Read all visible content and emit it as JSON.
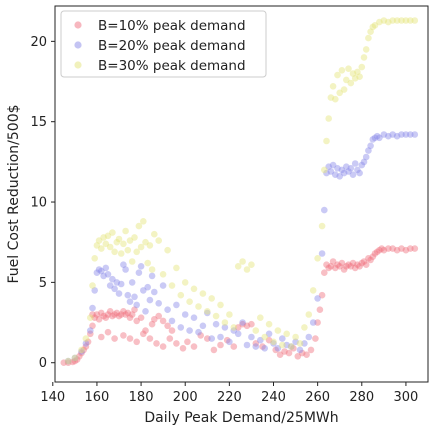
{
  "chart_data": {
    "type": "scatter",
    "xlabel": "Daily Peak Demand/25MWh",
    "ylabel": "Fuel Cost Reduction/500$",
    "xlim": [
      141,
      310
    ],
    "ylim": [
      -1.2,
      22.2
    ],
    "xticks": [
      140,
      160,
      180,
      200,
      220,
      240,
      260,
      280,
      300
    ],
    "yticks": [
      0,
      5,
      10,
      15,
      20
    ],
    "grid": false,
    "legend_position": "top-left",
    "series": [
      {
        "name": "B=10% peak demand",
        "color": "#f0707f",
        "points": [
          [
            145,
            0
          ],
          [
            147,
            0
          ],
          [
            149,
            0.05
          ],
          [
            150,
            0.1
          ],
          [
            151,
            0.2
          ],
          [
            152,
            0.4
          ],
          [
            153,
            0.6
          ],
          [
            154,
            0.8
          ],
          [
            155,
            1.0
          ],
          [
            156,
            1.3
          ],
          [
            157,
            1.8
          ],
          [
            158,
            2.3
          ],
          [
            158,
            3.0
          ],
          [
            159,
            2.8
          ],
          [
            160,
            3.0
          ],
          [
            161,
            2.7
          ],
          [
            162,
            3.1
          ],
          [
            163,
            2.9
          ],
          [
            164,
            2.8
          ],
          [
            165,
            3.0
          ],
          [
            166,
            3.2
          ],
          [
            167,
            2.9
          ],
          [
            168,
            3.0
          ],
          [
            169,
            3.1
          ],
          [
            170,
            2.9
          ],
          [
            171,
            3.0
          ],
          [
            172,
            3.2
          ],
          [
            173,
            3.0
          ],
          [
            174,
            3.1
          ],
          [
            175,
            2.8
          ],
          [
            176,
            3.0
          ],
          [
            177,
            3.3
          ],
          [
            178,
            2.6
          ],
          [
            180,
            2.8
          ],
          [
            182,
            2.0
          ],
          [
            185,
            2.4
          ],
          [
            186,
            2.7
          ],
          [
            188,
            2.9
          ],
          [
            190,
            2.6
          ],
          [
            192,
            2.3
          ],
          [
            194,
            2.0
          ],
          [
            162,
            1.6
          ],
          [
            165,
            1.9
          ],
          [
            168,
            1.5
          ],
          [
            172,
            1.7
          ],
          [
            175,
            1.5
          ],
          [
            178,
            1.3
          ],
          [
            181,
            1.8
          ],
          [
            184,
            1.5
          ],
          [
            187,
            1.2
          ],
          [
            190,
            1.0
          ],
          [
            193,
            1.5
          ],
          [
            196,
            1.2
          ],
          [
            199,
            0.9
          ],
          [
            201,
            1.3
          ],
          [
            204,
            1.0
          ],
          [
            207,
            1.7
          ],
          [
            210,
            1.5
          ],
          [
            213,
            0.8
          ],
          [
            216,
            1.1
          ],
          [
            219,
            1.4
          ],
          [
            222,
            1.0
          ],
          [
            224,
            2.2
          ],
          [
            226,
            2.4
          ],
          [
            228,
            2.3
          ],
          [
            230,
            2.4
          ],
          [
            232,
            1.2
          ],
          [
            235,
            1.0
          ],
          [
            238,
            1.4
          ],
          [
            241,
            0.8
          ],
          [
            243,
            0.5
          ],
          [
            245,
            0.7
          ],
          [
            247,
            0.6
          ],
          [
            249,
            0.9
          ],
          [
            251,
            0.4
          ],
          [
            253,
            0.6
          ],
          [
            255,
            0.5
          ],
          [
            257,
            0.8
          ],
          [
            259,
            1.5
          ],
          [
            260,
            2.5
          ],
          [
            261,
            3.3
          ],
          [
            262,
            4.2
          ],
          [
            263,
            5.6
          ],
          [
            264,
            6.1
          ],
          [
            265,
            5.9
          ],
          [
            266,
            6.0
          ],
          [
            267,
            6.3
          ],
          [
            268,
            5.9
          ],
          [
            269,
            6.1
          ],
          [
            270,
            6.0
          ],
          [
            271,
            6.2
          ],
          [
            272,
            5.8
          ],
          [
            273,
            6.0
          ],
          [
            274,
            6.1
          ],
          [
            275,
            6.0
          ],
          [
            276,
            6.2
          ],
          [
            277,
            5.9
          ],
          [
            278,
            6.1
          ],
          [
            279,
            6.0
          ],
          [
            280,
            6.2
          ],
          [
            281,
            6.3
          ],
          [
            282,
            6.1
          ],
          [
            283,
            6.5
          ],
          [
            284,
            6.4
          ],
          [
            285,
            6.6
          ],
          [
            286,
            6.8
          ],
          [
            287,
            6.9
          ],
          [
            288,
            7.0
          ],
          [
            289,
            7.1
          ],
          [
            290,
            7.0
          ],
          [
            292,
            7.1
          ],
          [
            294,
            7.1
          ],
          [
            296,
            7.0
          ],
          [
            298,
            7.1
          ],
          [
            300,
            7.0
          ],
          [
            302,
            7.1
          ],
          [
            304,
            7.1
          ]
        ]
      },
      {
        "name": "B=20% peak demand",
        "color": "#8a8ae8",
        "points": [
          [
            147,
            0.1
          ],
          [
            150,
            0.3
          ],
          [
            153,
            0.7
          ],
          [
            155,
            1.2
          ],
          [
            157,
            2.0
          ],
          [
            158,
            3.4
          ],
          [
            159,
            4.5
          ],
          [
            160,
            5.6
          ],
          [
            161,
            5.8
          ],
          [
            162,
            5.7
          ],
          [
            163,
            5.4
          ],
          [
            164,
            5.9
          ],
          [
            165,
            5.5
          ],
          [
            166,
            4.8
          ],
          [
            167,
            5.2
          ],
          [
            168,
            4.6
          ],
          [
            169,
            5.0
          ],
          [
            170,
            4.3
          ],
          [
            171,
            4.9
          ],
          [
            172,
            6.1
          ],
          [
            173,
            5.8
          ],
          [
            174,
            4.2
          ],
          [
            175,
            3.8
          ],
          [
            176,
            5.0
          ],
          [
            177,
            4.1
          ],
          [
            178,
            3.6
          ],
          [
            179,
            5.6
          ],
          [
            180,
            6.0
          ],
          [
            181,
            4.5
          ],
          [
            182,
            3.2
          ],
          [
            183,
            4.7
          ],
          [
            184,
            3.9
          ],
          [
            185,
            5.4
          ],
          [
            186,
            4.4
          ],
          [
            188,
            3.7
          ],
          [
            190,
            4.8
          ],
          [
            192,
            3.3
          ],
          [
            194,
            2.6
          ],
          [
            196,
            3.6
          ],
          [
            198,
            2.2
          ],
          [
            200,
            3.0
          ],
          [
            202,
            2.0
          ],
          [
            204,
            2.8
          ],
          [
            206,
            1.9
          ],
          [
            208,
            2.3
          ],
          [
            210,
            3.1
          ],
          [
            212,
            1.5
          ],
          [
            214,
            2.4
          ],
          [
            216,
            1.6
          ],
          [
            218,
            2.2
          ],
          [
            220,
            1.3
          ],
          [
            222,
            2.0
          ],
          [
            224,
            1.8
          ],
          [
            226,
            2.5
          ],
          [
            228,
            1.1
          ],
          [
            230,
            1.6
          ],
          [
            232,
            1.0
          ],
          [
            234,
            1.4
          ],
          [
            236,
            0.9
          ],
          [
            238,
            1.8
          ],
          [
            240,
            1.2
          ],
          [
            242,
            0.9
          ],
          [
            244,
            1.5
          ],
          [
            246,
            1.1
          ],
          [
            248,
            1.0
          ],
          [
            250,
            1.3
          ],
          [
            252,
            0.8
          ],
          [
            254,
            1.2
          ],
          [
            256,
            1.6
          ],
          [
            258,
            2.5
          ],
          [
            260,
            4.0
          ],
          [
            262,
            6.8
          ],
          [
            263,
            9.5
          ],
          [
            264,
            11.8
          ],
          [
            265,
            12.2
          ],
          [
            266,
            11.9
          ],
          [
            267,
            12.3
          ],
          [
            268,
            11.7
          ],
          [
            269,
            12.1
          ],
          [
            270,
            11.6
          ],
          [
            271,
            12.0
          ],
          [
            272,
            11.8
          ],
          [
            273,
            12.2
          ],
          [
            274,
            11.9
          ],
          [
            275,
            12.1
          ],
          [
            276,
            11.7
          ],
          [
            277,
            12.4
          ],
          [
            278,
            12.0
          ],
          [
            279,
            11.8
          ],
          [
            280,
            12.3
          ],
          [
            281,
            12.5
          ],
          [
            282,
            12.8
          ],
          [
            283,
            13.2
          ],
          [
            284,
            13.5
          ],
          [
            285,
            13.9
          ],
          [
            286,
            14.0
          ],
          [
            287,
            14.1
          ],
          [
            288,
            14.0
          ],
          [
            290,
            14.2
          ],
          [
            292,
            14.1
          ],
          [
            294,
            14.2
          ],
          [
            296,
            14.1
          ],
          [
            298,
            14.2
          ],
          [
            300,
            14.2
          ],
          [
            302,
            14.2
          ],
          [
            304,
            14.2
          ]
        ]
      },
      {
        "name": "B=30% peak demand",
        "color": "#e4e47a",
        "points": [
          [
            147,
            0.1
          ],
          [
            150,
            0.3
          ],
          [
            153,
            0.8
          ],
          [
            155,
            1.5
          ],
          [
            157,
            2.8
          ],
          [
            158,
            4.8
          ],
          [
            159,
            6.5
          ],
          [
            160,
            7.3
          ],
          [
            161,
            7.6
          ],
          [
            162,
            7.1
          ],
          [
            163,
            7.8
          ],
          [
            164,
            7.4
          ],
          [
            165,
            7.9
          ],
          [
            166,
            7.2
          ],
          [
            167,
            8.1
          ],
          [
            168,
            6.9
          ],
          [
            169,
            7.5
          ],
          [
            170,
            7.7
          ],
          [
            171,
            6.8
          ],
          [
            172,
            7.4
          ],
          [
            173,
            8.2
          ],
          [
            174,
            7.0
          ],
          [
            175,
            7.6
          ],
          [
            176,
            6.3
          ],
          [
            177,
            7.8
          ],
          [
            178,
            6.9
          ],
          [
            179,
            8.5
          ],
          [
            180,
            7.2
          ],
          [
            181,
            8.8
          ],
          [
            182,
            7.5
          ],
          [
            183,
            6.2
          ],
          [
            184,
            7.3
          ],
          [
            185,
            5.8
          ],
          [
            186,
            8.0
          ],
          [
            188,
            7.6
          ],
          [
            190,
            5.5
          ],
          [
            192,
            7.0
          ],
          [
            194,
            4.8
          ],
          [
            196,
            5.9
          ],
          [
            198,
            4.2
          ],
          [
            200,
            5.0
          ],
          [
            202,
            3.8
          ],
          [
            204,
            4.6
          ],
          [
            206,
            3.5
          ],
          [
            208,
            4.3
          ],
          [
            210,
            3.2
          ],
          [
            212,
            4.0
          ],
          [
            214,
            2.9
          ],
          [
            216,
            3.6
          ],
          [
            218,
            2.5
          ],
          [
            220,
            3.0
          ],
          [
            222,
            2.2
          ],
          [
            224,
            6.0
          ],
          [
            226,
            6.3
          ],
          [
            228,
            5.8
          ],
          [
            230,
            6.1
          ],
          [
            232,
            2.0
          ],
          [
            234,
            2.8
          ],
          [
            236,
            1.6
          ],
          [
            238,
            2.4
          ],
          [
            240,
            1.3
          ],
          [
            242,
            2.0
          ],
          [
            244,
            1.1
          ],
          [
            246,
            1.8
          ],
          [
            248,
            1.0
          ],
          [
            250,
            1.6
          ],
          [
            252,
            1.2
          ],
          [
            254,
            2.2
          ],
          [
            256,
            3.0
          ],
          [
            258,
            4.5
          ],
          [
            260,
            6.5
          ],
          [
            262,
            8.5
          ],
          [
            263,
            12.0
          ],
          [
            264,
            13.8
          ],
          [
            265,
            15.2
          ],
          [
            266,
            16.5
          ],
          [
            267,
            17.2
          ],
          [
            268,
            16.4
          ],
          [
            269,
            17.9
          ],
          [
            270,
            16.8
          ],
          [
            271,
            18.2
          ],
          [
            272,
            17.0
          ],
          [
            273,
            17.6
          ],
          [
            274,
            18.3
          ],
          [
            275,
            17.4
          ],
          [
            276,
            18.0
          ],
          [
            277,
            17.7
          ],
          [
            278,
            18.1
          ],
          [
            279,
            17.8
          ],
          [
            280,
            18.4
          ],
          [
            281,
            19.0
          ],
          [
            282,
            19.5
          ],
          [
            283,
            20.2
          ],
          [
            284,
            20.6
          ],
          [
            285,
            20.9
          ],
          [
            286,
            21.0
          ],
          [
            288,
            21.2
          ],
          [
            290,
            21.3
          ],
          [
            292,
            21.2
          ],
          [
            294,
            21.3
          ],
          [
            296,
            21.3
          ],
          [
            298,
            21.3
          ],
          [
            300,
            21.3
          ],
          [
            302,
            21.3
          ],
          [
            304,
            21.3
          ]
        ]
      }
    ]
  }
}
